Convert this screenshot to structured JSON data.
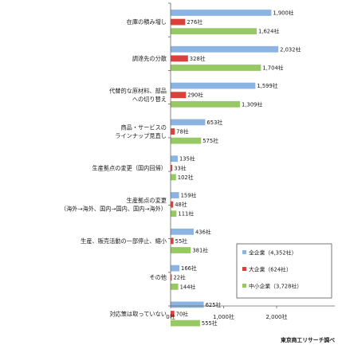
{
  "chart_data": {
    "type": "bar",
    "orientation": "horizontal",
    "title": "",
    "xlabel": "",
    "ylabel": "",
    "xlim": [
      0,
      2000
    ],
    "x_ticks": [
      0,
      1000,
      2000
    ],
    "x_tick_labels": [
      "0社",
      "1,000社",
      "2,000社"
    ],
    "grid": false,
    "legend_position": "bottom-right",
    "categories": [
      [
        "在庫の積み増し"
      ],
      [
        "調達先の分散"
      ],
      [
        "代替的な原材料、部品",
        "への切り替え"
      ],
      [
        "商品・サービスの",
        "ラインナップ見直し"
      ],
      [
        "生産拠点の変更（国内回帰）"
      ],
      [
        "生産拠点の変更",
        "（海外→海外、国内→国内、国内→海外）"
      ],
      [
        "生産、販売活動の一部停止、縮小"
      ],
      [
        "その他"
      ],
      [
        "対応策は取っていない"
      ]
    ],
    "series": [
      {
        "name": "全企業（4,352社）",
        "color": "#8cb4e2",
        "values": [
          1900,
          2032,
          1599,
          653,
          135,
          159,
          436,
          166,
          625
        ],
        "labels": [
          "1,900社",
          "2,032社",
          "1,599社",
          "653社",
          "135社",
          "159社",
          "436社",
          "166社",
          "625社"
        ]
      },
      {
        "name": "大企業（624社）",
        "color": "#d9413a",
        "values": [
          276,
          328,
          290,
          78,
          33,
          48,
          55,
          22,
          70
        ],
        "labels": [
          "276社",
          "328社",
          "290社",
          "78社",
          "33社",
          "48社",
          "55社",
          "22社",
          "70社"
        ]
      },
      {
        "name": "中小企業（3,728社）",
        "color": "#96c864",
        "values": [
          1624,
          1704,
          1309,
          575,
          102,
          111,
          381,
          144,
          555
        ],
        "labels": [
          "1,624社",
          "1,704社",
          "1,309社",
          "575社",
          "102社",
          "111社",
          "381社",
          "144社",
          "555社"
        ]
      }
    ],
    "source": "東京商工リサーチ調べ"
  }
}
